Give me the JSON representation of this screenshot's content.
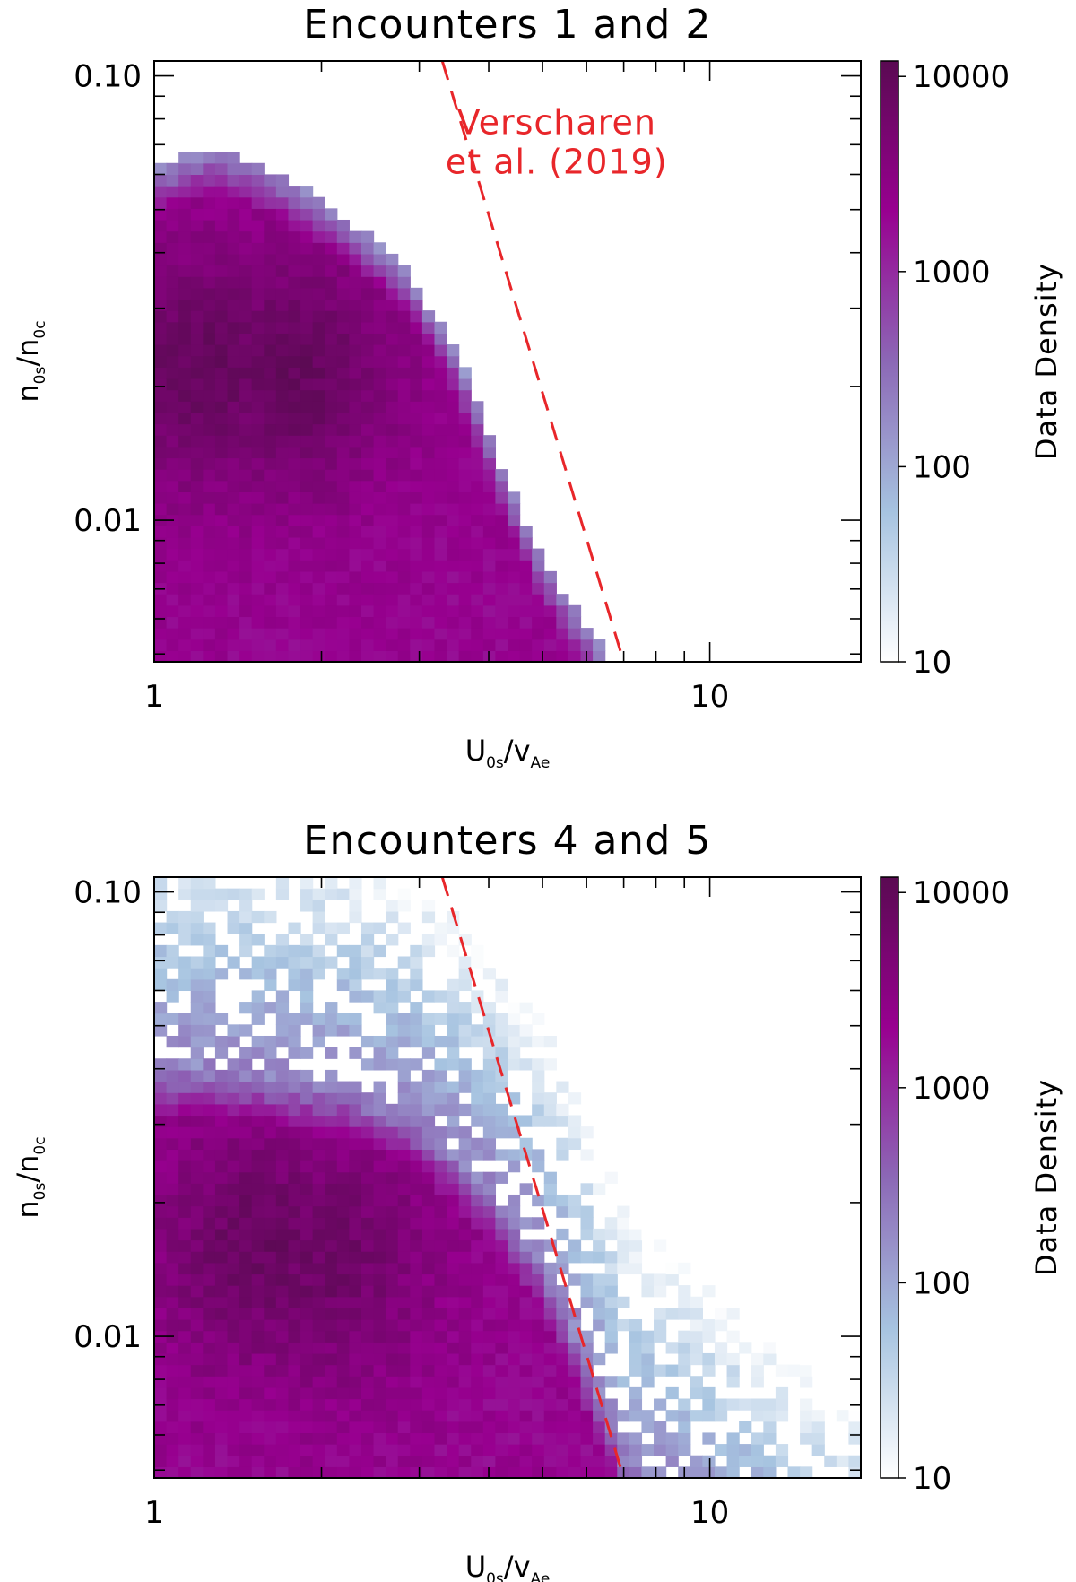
{
  "figure": {
    "panels": 2
  },
  "chart_data": [
    {
      "type": "heatmap",
      "title": "Encounters 1 and 2",
      "xlabel": {
        "main": "U",
        "sub": "0s",
        "slash": "/",
        "main2": "v",
        "sub2": "Ae"
      },
      "ylabel": {
        "main": "n",
        "sub": "0s",
        "slash": "/",
        "main2": "n",
        "sub2": "0c"
      },
      "x_scale": "log",
      "y_scale": "log",
      "xlim": [
        1,
        18.7
      ],
      "ylim": [
        0.0048,
        0.108
      ],
      "x_ticks": [
        {
          "value": 1,
          "label": "1"
        },
        {
          "value": 10,
          "label": "10"
        }
      ],
      "y_ticks": [
        {
          "value": 0.01,
          "label": "0.01"
        },
        {
          "value": 0.1,
          "label": "0.10"
        }
      ],
      "colorbar": {
        "label": "Data Density",
        "scale": "log",
        "range": [
          10,
          12000
        ],
        "ticks": [
          {
            "value": 10,
            "label": "10"
          },
          {
            "value": 100,
            "label": "100"
          },
          {
            "value": 1000,
            "label": "1000"
          },
          {
            "value": 10000,
            "label": "10000"
          }
        ],
        "colors": [
          "#ffffff",
          "#a6c3e0",
          "#8c68b6",
          "#980090",
          "#5a0a52"
        ]
      },
      "density_model": {
        "peaks": [
          {
            "u": 1.22,
            "n": 0.022,
            "log_amplitude": 3.95
          },
          {
            "u": 1.75,
            "n": 0.0215,
            "log_amplitude": 3.95
          }
        ],
        "base_log_density": 3.3,
        "upper_edge": [
          [
            1.0,
            0.062
          ],
          [
            1.3,
            0.07
          ],
          [
            1.7,
            0.06
          ],
          [
            2.2,
            0.048
          ],
          [
            2.8,
            0.038
          ],
          [
            3.5,
            0.024
          ],
          [
            4.3,
            0.0125
          ],
          [
            5.0,
            0.0082
          ],
          [
            6.0,
            0.0058
          ]
        ],
        "core_width_decades": 0.11,
        "tail_log_density": 1.0,
        "tail_width_decades": 0.15,
        "noise": 0.25
      },
      "series": [
        {
          "name": "Verscharen et al. (2019)",
          "style": "dashed",
          "color": "#e8262a",
          "x": [
            3.3,
            7.0
          ],
          "y": [
            0.108,
            0.0048
          ]
        }
      ],
      "annotations": [
        {
          "lines": [
            "Verscharen",
            "et al. (2019)"
          ],
          "color": "#e8262a",
          "x": 5.3,
          "y": 0.074
        }
      ]
    },
    {
      "type": "heatmap",
      "title": "Encounters 4 and 5",
      "xlabel": {
        "main": "U",
        "sub": "0s",
        "slash": "/",
        "main2": "v",
        "sub2": "Ae"
      },
      "ylabel": {
        "main": "n",
        "sub": "0s",
        "slash": "/",
        "main2": "n",
        "sub2": "0c"
      },
      "x_scale": "log",
      "y_scale": "log",
      "xlim": [
        1,
        18.7
      ],
      "ylim": [
        0.0048,
        0.108
      ],
      "x_ticks": [
        {
          "value": 1,
          "label": "1"
        },
        {
          "value": 10,
          "label": "10"
        }
      ],
      "y_ticks": [
        {
          "value": 0.01,
          "label": "0.01"
        },
        {
          "value": 0.1,
          "label": "0.10"
        }
      ],
      "colorbar": {
        "label": "Data Density",
        "scale": "log",
        "range": [
          10,
          12000
        ],
        "ticks": [
          {
            "value": 10,
            "label": "10"
          },
          {
            "value": 100,
            "label": "100"
          },
          {
            "value": 1000,
            "label": "1000"
          },
          {
            "value": 10000,
            "label": "10000"
          }
        ],
        "colors": [
          "#ffffff",
          "#a6c3e0",
          "#8c68b6",
          "#980090",
          "#5a0a52"
        ]
      },
      "density_model": {
        "peaks": [
          {
            "u": 1.55,
            "n": 0.016,
            "log_amplitude": 3.9
          },
          {
            "u": 2.0,
            "n": 0.015,
            "log_amplitude": 3.85
          }
        ],
        "base_log_density": 3.3,
        "upper_edge": [
          [
            1.0,
            0.042
          ],
          [
            1.5,
            0.04
          ],
          [
            2.2,
            0.037
          ],
          [
            3.0,
            0.031
          ],
          [
            4.0,
            0.022
          ],
          [
            5.0,
            0.015
          ],
          [
            6.0,
            0.009
          ],
          [
            7.0,
            0.0055
          ],
          [
            8.0,
            0.0048
          ]
        ],
        "core_width_decades": 0.13,
        "tail_log_density": 2.3,
        "tail_width_decades": 0.42,
        "noise": 0.3
      },
      "series": [
        {
          "name": "Verscharen et al. (2019)",
          "style": "dashed",
          "color": "#e8262a",
          "x": [
            3.3,
            7.0
          ],
          "y": [
            0.108,
            0.0048
          ]
        }
      ],
      "annotations": []
    }
  ]
}
